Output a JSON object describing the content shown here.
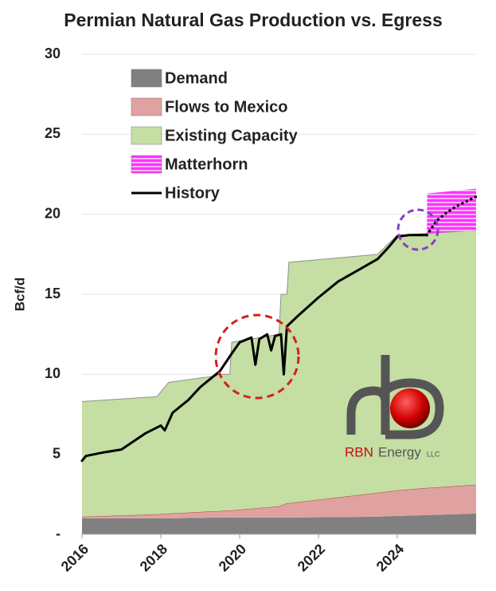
{
  "chart_data": {
    "type": "stacked_area",
    "title": "Permian Natural Gas Production vs. Egress",
    "y_label": "Bcf/d",
    "xlim": [
      2016,
      2026
    ],
    "xticks": [
      2016,
      2018,
      2020,
      2022,
      2024
    ],
    "ylim": [
      0,
      30
    ],
    "yticks": [
      {
        "value": 0,
        "label": "-"
      },
      5,
      10,
      15,
      20,
      25,
      30
    ],
    "grid": true,
    "legend": "upper left",
    "x": [
      2016,
      2017.9,
      2018.2,
      2019.4,
      2019.45,
      2019.75,
      2019.8,
      2021.0,
      2021.05,
      2021.2,
      2021.25,
      2023.5,
      2024.0,
      2024.75,
      2024.76,
      2026
    ],
    "series": [
      {
        "name": "Demand",
        "color": "#808080",
        "values": [
          1.0,
          1.0,
          1.0,
          1.05,
          1.05,
          1.05,
          1.05,
          1.05,
          1.05,
          1.05,
          1.05,
          1.1,
          1.15,
          1.2,
          1.2,
          1.3
        ]
      },
      {
        "name": "Flows to Mexico",
        "color": "#dfa2a0",
        "values": [
          0.1,
          0.25,
          0.3,
          0.4,
          0.4,
          0.45,
          0.45,
          0.7,
          0.75,
          0.9,
          0.9,
          1.5,
          1.6,
          1.7,
          1.7,
          1.8
        ]
      },
      {
        "name": "Existing Capacity",
        "color": "#c5dea3",
        "values": [
          7.2,
          7.35,
          8.2,
          8.45,
          8.55,
          8.5,
          10.5,
          10.75,
          13.2,
          13.05,
          15.05,
          14.9,
          15.95,
          15.9,
          15.9,
          15.9
        ]
      },
      {
        "name": "Matterhorn",
        "color": "#ff33ff",
        "pattern": "horizontal-stripes",
        "values": [
          0,
          0,
          0,
          0,
          0,
          0,
          0,
          0,
          0,
          0,
          0,
          0,
          0,
          0,
          2.5,
          2.6
        ]
      }
    ],
    "lines": [
      {
        "name": "History",
        "color": "#000000",
        "x": [
          2016,
          2016.1,
          2016.5,
          2017,
          2017.3,
          2017.6,
          2018,
          2018.1,
          2018.3,
          2018.7,
          2019,
          2019.5,
          2019.8,
          2020,
          2020.3,
          2020.4,
          2020.5,
          2020.7,
          2020.8,
          2020.9,
          2021.05,
          2021.12,
          2021.2,
          2021.5,
          2022,
          2022.5,
          2023,
          2023.5,
          2023.8,
          2024,
          2024.3,
          2024.75
        ],
        "values": [
          4.6,
          4.9,
          5.1,
          5.3,
          5.8,
          6.3,
          6.8,
          6.5,
          7.6,
          8.4,
          9.2,
          10.2,
          11.3,
          12.0,
          12.3,
          10.6,
          12.2,
          12.5,
          11.5,
          12.4,
          12.5,
          10.0,
          13.0,
          13.7,
          14.8,
          15.8,
          16.5,
          17.2,
          18.0,
          18.6,
          18.7,
          18.7
        ]
      },
      {
        "color": "#000000",
        "dash": "dotted",
        "x": [
          2024.75,
          2025.0,
          2025.25,
          2025.5,
          2025.75,
          2026
        ],
        "values": [
          18.7,
          19.6,
          20.1,
          20.5,
          20.8,
          21.1
        ]
      }
    ],
    "logo": {
      "brand": "RBN",
      "word": "Energy",
      "suffix": "LLC"
    }
  }
}
